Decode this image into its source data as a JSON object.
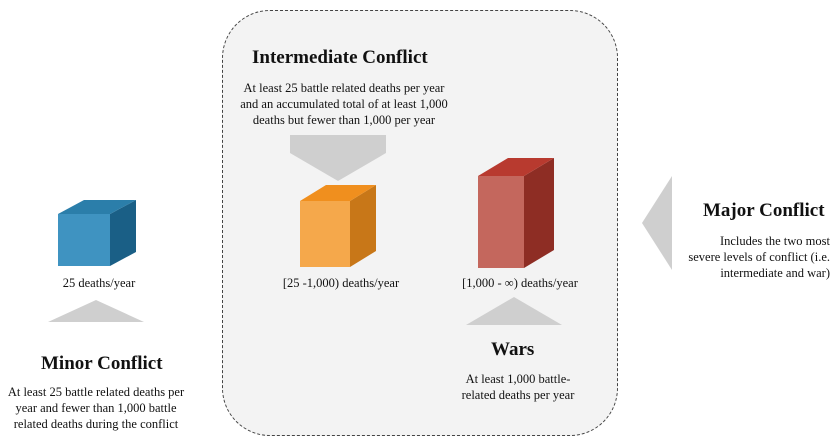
{
  "intermediate": {
    "title": "Intermediate Conflict",
    "description": "At least 25 battle related deaths per year and an accumulated total of at least 1,000 deaths but fewer than 1,000 per year",
    "range_label": "[25 -1,000) deaths/year"
  },
  "minor": {
    "title": "Minor Conflict",
    "description": "At least 25 battle related deaths per year and fewer than 1,000  battle related deaths during the conflict",
    "threshold_label": "25 deaths/year"
  },
  "wars": {
    "title": "Wars",
    "description": "At least 1,000 battle-related deaths per year",
    "range_label": "[1,000 - ∞) deaths/year"
  },
  "major": {
    "title": "Major Conflict",
    "description": "Includes the two most severe levels of conflict (i.e. intermediate and war)"
  },
  "colors": {
    "minor_cube": "#2f82ad",
    "intermediate_cube": "#f39a2a",
    "war_cube": "#c0443a",
    "arrow": "#cfcfcf",
    "panel_bg": "#f3f3f3"
  }
}
